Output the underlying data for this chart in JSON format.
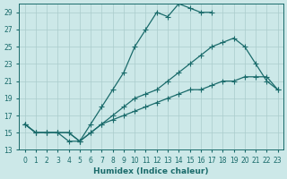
{
  "xlabel": "Humidex (Indice chaleur)",
  "bg_color": "#cce8e8",
  "grid_color": "#aacccc",
  "line_color": "#1a6b6b",
  "xlim": [
    -0.5,
    23.5
  ],
  "ylim": [
    13,
    30
  ],
  "xticks": [
    0,
    1,
    2,
    3,
    4,
    5,
    6,
    7,
    8,
    9,
    10,
    11,
    12,
    13,
    14,
    15,
    16,
    17,
    18,
    19,
    20,
    21,
    22,
    23
  ],
  "yticks": [
    13,
    15,
    17,
    19,
    21,
    23,
    25,
    27,
    29
  ],
  "line1_x": [
    0,
    1,
    2,
    3,
    4,
    5,
    6,
    7,
    8,
    9,
    10,
    11,
    12,
    13,
    14,
    15,
    16,
    17,
    18,
    19,
    20,
    21
  ],
  "line1_y": [
    16,
    15,
    15,
    15,
    15,
    14,
    16,
    18,
    20,
    22,
    25,
    27,
    29,
    28.5,
    30,
    29.5,
    29,
    29,
    null,
    null,
    null,
    null
  ],
  "line2_x": [
    0,
    1,
    2,
    3,
    4,
    5,
    6,
    7,
    8,
    9,
    10,
    11,
    12,
    13,
    14,
    15,
    16,
    17,
    18,
    19,
    20,
    21,
    22,
    23
  ],
  "line2_y": [
    16,
    15,
    15,
    15,
    15,
    14,
    15,
    16,
    17,
    18,
    19,
    19.5,
    20,
    21,
    22,
    23,
    24,
    25,
    25.5,
    26,
    25,
    23,
    21,
    20
  ],
  "line3_x": [
    0,
    1,
    2,
    3,
    4,
    5,
    6,
    7,
    8,
    9,
    10,
    11,
    12,
    13,
    14,
    15,
    16,
    17,
    18,
    19,
    20,
    21,
    22,
    23
  ],
  "line3_y": [
    16,
    15,
    15,
    15,
    14,
    14,
    15,
    16,
    16.5,
    17,
    17.5,
    18,
    18.5,
    19,
    19.5,
    20,
    20,
    20.5,
    21,
    21,
    21.5,
    21.5,
    21.5,
    20
  ]
}
